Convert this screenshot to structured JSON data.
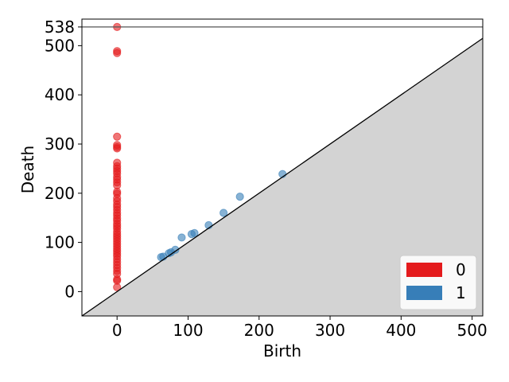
{
  "chart_data": {
    "type": "scatter",
    "title": "",
    "xlabel": "Birth",
    "ylabel": "Death",
    "xlim": [
      -49.5,
      515
    ],
    "ylim": [
      -49.5,
      554
    ],
    "xticks": [
      0,
      100,
      200,
      300,
      400,
      500
    ],
    "yticks": [
      0,
      100,
      200,
      300,
      400,
      500,
      538
    ],
    "infinity_line": 538,
    "grid": false,
    "legend_position": "bottom-right",
    "series": [
      {
        "name": "0",
        "color": "#e41a1c",
        "points": [
          [
            0,
            538
          ],
          [
            0,
            489
          ],
          [
            0,
            485
          ],
          [
            0,
            315
          ],
          [
            0,
            298
          ],
          [
            0,
            294
          ],
          [
            0,
            291
          ],
          [
            0,
            262
          ],
          [
            0,
            255
          ],
          [
            0,
            250
          ],
          [
            0,
            245
          ],
          [
            0,
            240
          ],
          [
            0,
            233
          ],
          [
            0,
            228
          ],
          [
            0,
            222
          ],
          [
            0,
            216
          ],
          [
            0,
            203
          ],
          [
            0,
            199
          ],
          [
            0,
            190
          ],
          [
            0,
            184
          ],
          [
            0,
            177
          ],
          [
            0,
            172
          ],
          [
            0,
            166
          ],
          [
            0,
            160
          ],
          [
            0,
            155
          ],
          [
            0,
            149
          ],
          [
            0,
            144
          ],
          [
            0,
            138
          ],
          [
            0,
            133
          ],
          [
            0,
            128
          ],
          [
            0,
            122
          ],
          [
            0,
            117
          ],
          [
            0,
            112
          ],
          [
            0,
            107
          ],
          [
            0,
            102
          ],
          [
            0,
            97
          ],
          [
            0,
            92
          ],
          [
            0,
            87
          ],
          [
            0,
            82
          ],
          [
            0,
            77
          ],
          [
            0,
            72
          ],
          [
            0,
            66
          ],
          [
            0,
            60
          ],
          [
            0,
            54
          ],
          [
            0,
            48
          ],
          [
            0,
            42
          ],
          [
            0,
            36
          ],
          [
            0,
            25
          ],
          [
            0,
            22
          ],
          [
            0,
            9
          ]
        ]
      },
      {
        "name": "1",
        "color": "#377eb8",
        "points": [
          [
            62,
            70
          ],
          [
            65,
            71
          ],
          [
            73,
            78
          ],
          [
            76,
            80
          ],
          [
            82,
            85
          ],
          [
            91,
            110
          ],
          [
            105,
            117
          ],
          [
            109,
            119
          ],
          [
            129,
            135
          ],
          [
            150,
            160
          ],
          [
            173,
            193
          ],
          [
            233,
            239
          ]
        ]
      }
    ]
  }
}
